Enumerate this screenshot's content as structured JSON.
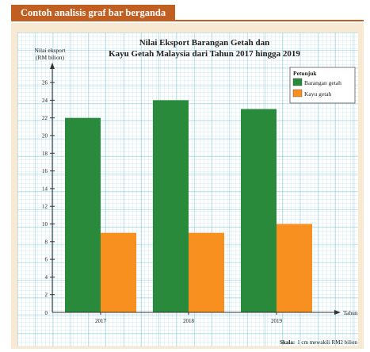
{
  "header": {
    "label": "Contoh analisis graf bar berganda"
  },
  "chart_data": {
    "type": "bar",
    "title_line1": "Nilai Eksport Barangan Getah dan",
    "title_line2": "Kayu Getah Malaysia dari Tahun 2017 hingga 2019",
    "ylabel_line1": "Nilai eksport",
    "ylabel_line2": "(RM bilion)",
    "xlabel": "Tahun",
    "categories": [
      "2017",
      "2018",
      "2019"
    ],
    "series": [
      {
        "name": "Barangan getah",
        "color": "#2a8a3b",
        "values": [
          22,
          24,
          23
        ]
      },
      {
        "name": "Kayu getah",
        "color": "#f7901e",
        "values": [
          9,
          9,
          10
        ]
      }
    ],
    "ylim": [
      0,
      26
    ],
    "yticks": [
      2,
      4,
      6,
      8,
      10,
      12,
      14,
      16,
      18,
      20,
      22,
      24,
      26
    ],
    "zero_label": "0",
    "legend_title": "Petunjuk",
    "legend_position": "top-right",
    "grid": true,
    "grid_color": "#7fc7d8",
    "scale_bold": "Skala:",
    "scale_text": "1 cm mewakili RM2 bilion"
  }
}
